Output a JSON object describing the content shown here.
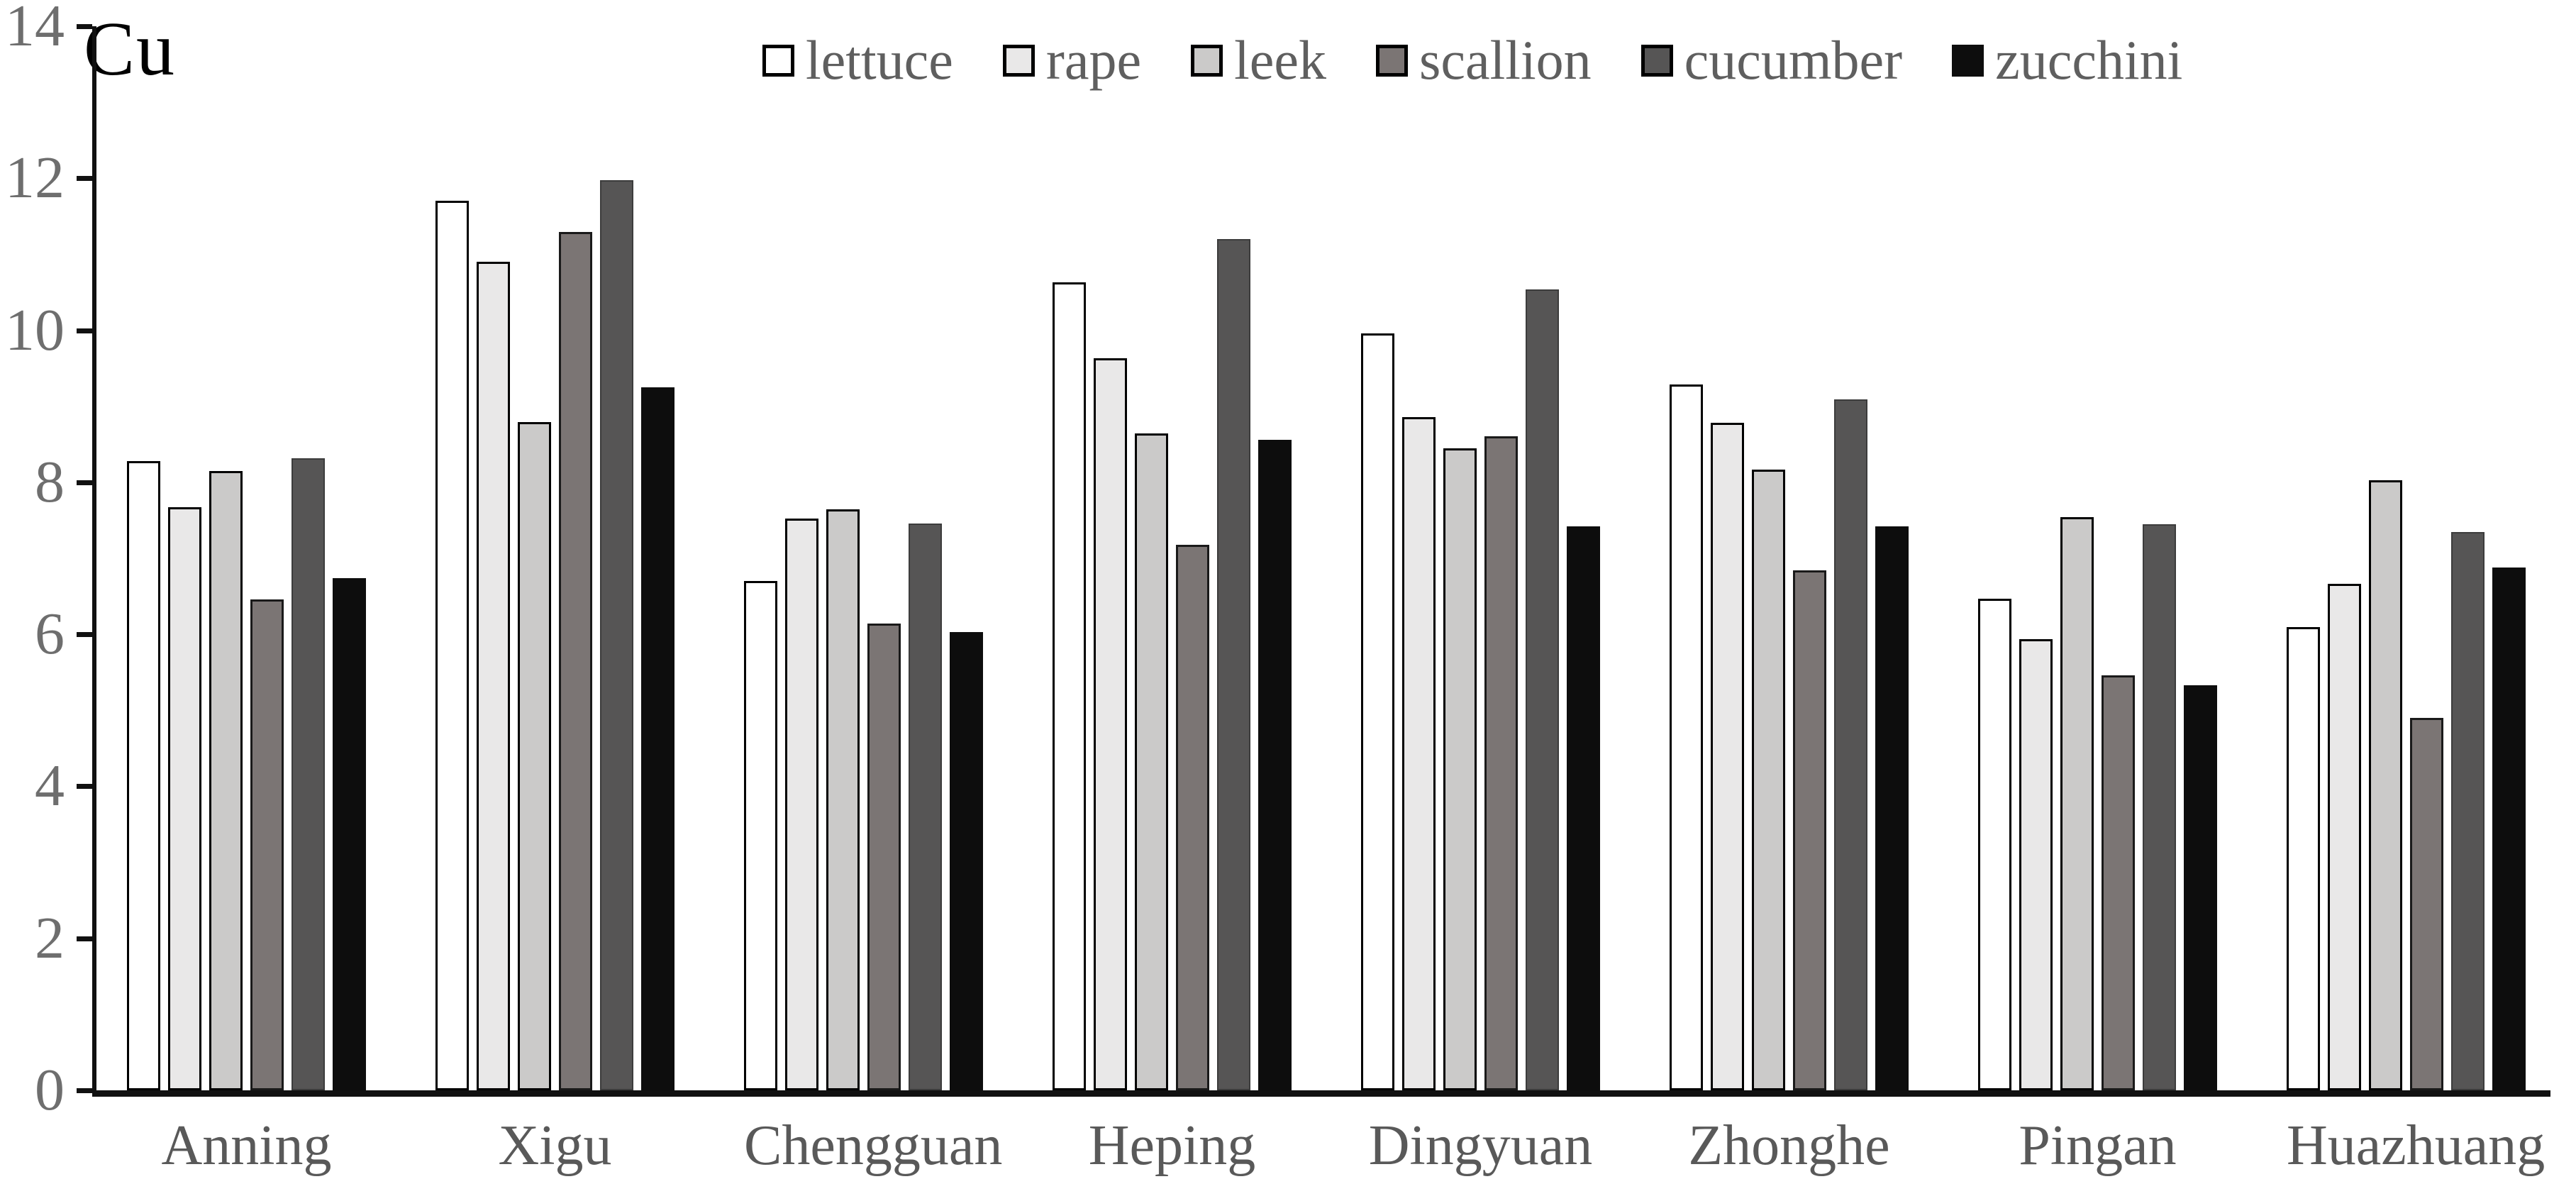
{
  "title": "Cu",
  "colors": {
    "axis": "#111111",
    "y_tick_label": "#6e6e6e",
    "x_label": "#595959",
    "legend_label": "#5f5f5f",
    "background": "#ffffff"
  },
  "chart_data": {
    "type": "bar",
    "title": "Cu",
    "xlabel": "",
    "ylabel": "",
    "ylim": [
      0,
      14
    ],
    "y_ticks": [
      0,
      2,
      4,
      6,
      8,
      10,
      12,
      14
    ],
    "grid": false,
    "legend_position": "top-center",
    "categories": [
      "Anning",
      "Xigu",
      "Chengguan",
      "Heping",
      "Dingyuan",
      "Zhonghe",
      "Pingan",
      "Huazhuang"
    ],
    "series": [
      {
        "name": "lettuce",
        "fill": "#ffffff",
        "border": "#000000",
        "border_px": 3,
        "values": [
          8.28,
          11.7,
          6.7,
          10.63,
          9.96,
          9.29,
          6.47,
          6.09
        ]
      },
      {
        "name": "rape",
        "fill": "#e9e8e8",
        "border": "#000000",
        "border_px": 3,
        "values": [
          7.67,
          10.9,
          7.52,
          9.63,
          8.86,
          8.78,
          5.94,
          6.66
        ]
      },
      {
        "name": "leek",
        "fill": "#cbcac9",
        "border": "#000000",
        "border_px": 3,
        "values": [
          8.15,
          8.79,
          7.64,
          8.64,
          8.45,
          8.17,
          7.54,
          8.03
        ]
      },
      {
        "name": "scallion",
        "fill": "#7b7574",
        "border": "#1a1a1a",
        "border_px": 3,
        "values": [
          6.46,
          11.29,
          6.14,
          7.18,
          8.61,
          6.84,
          5.46,
          4.9
        ]
      },
      {
        "name": "cucumber",
        "fill": "#565555",
        "border": "#3c3c3c",
        "border_px": 2,
        "values": [
          8.32,
          11.97,
          7.46,
          11.2,
          10.54,
          9.09,
          7.45,
          7.35
        ]
      },
      {
        "name": "zucchini",
        "fill": "#0d0d0d",
        "border": "#0d0d0d",
        "border_px": 0,
        "values": [
          6.74,
          9.25,
          6.03,
          8.56,
          7.42,
          7.42,
          5.33,
          6.88
        ]
      }
    ]
  }
}
